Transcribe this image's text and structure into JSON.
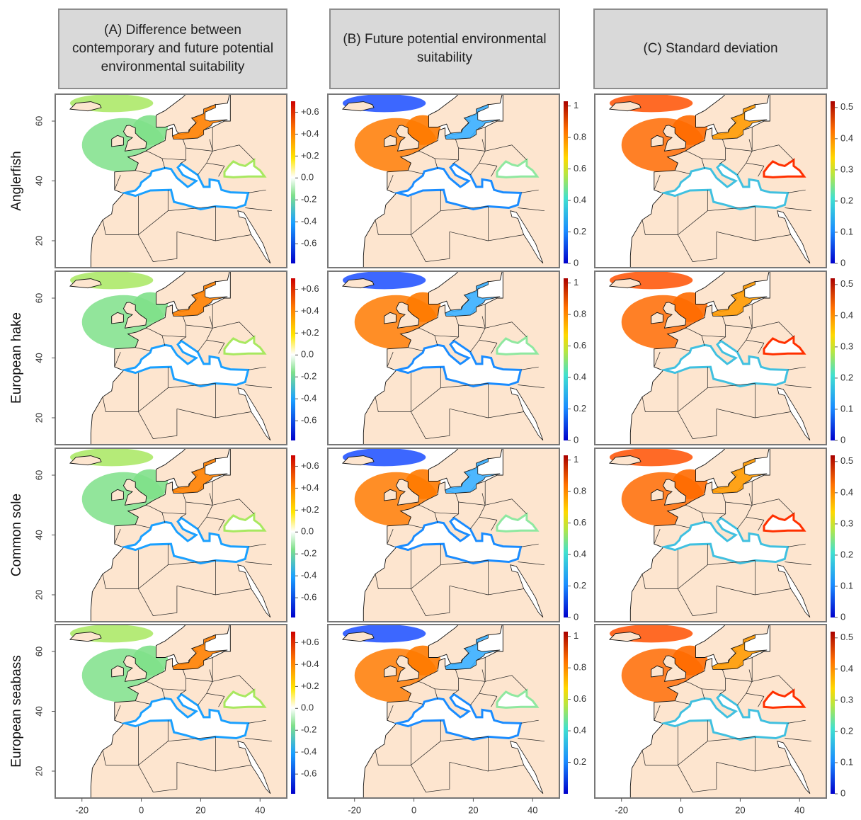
{
  "columns": [
    {
      "title": "(A) Difference between contemporary and future potential environmental suitability"
    },
    {
      "title": "(B) Future potential environmental suitability"
    },
    {
      "title": "(C) Standard deviation"
    }
  ],
  "rows": [
    {
      "label": "Anglerfish",
      "panels": [
        {
          "lim": [
            -0.78,
            0.7
          ],
          "ticks": [
            {
              "value": 0.6,
              "label": "+0.6"
            },
            {
              "value": 0.4,
              "label": "+0.4"
            },
            {
              "value": 0.2,
              "label": "+0.2"
            },
            {
              "value": 0,
              "label": "0.0"
            },
            -0.2,
            -0.4,
            -0.6
          ]
        },
        {
          "lim": [
            0,
            1.03
          ],
          "ticks": [
            1,
            0.8,
            0.6,
            0.4,
            0.2,
            0
          ]
        },
        {
          "lim": [
            0,
            0.52
          ],
          "ticks": [
            0.5,
            0.4,
            0.3,
            0.2,
            0.1,
            0
          ]
        }
      ]
    },
    {
      "label": "European hake",
      "panels": [
        {
          "lim": [
            -0.78,
            0.7
          ],
          "ticks": [
            {
              "value": 0.6,
              "label": "+0.6"
            },
            {
              "value": 0.4,
              "label": "+0.4"
            },
            {
              "value": 0.2,
              "label": "+0.2"
            },
            {
              "value": 0,
              "label": "0.0"
            },
            -0.2,
            -0.4,
            -0.6
          ]
        },
        {
          "lim": [
            0,
            1.03
          ],
          "ticks": [
            1,
            0.8,
            0.6,
            0.4,
            0.2,
            0
          ]
        },
        {
          "lim": [
            0,
            0.52
          ],
          "ticks": [
            0.5,
            0.4,
            0.3,
            0.2,
            0.1,
            0
          ]
        }
      ]
    },
    {
      "label": "Common sole",
      "panels": [
        {
          "lim": [
            -0.78,
            0.7
          ],
          "ticks": [
            {
              "value": 0.6,
              "label": "+0.6"
            },
            {
              "value": 0.4,
              "label": "+0.4"
            },
            {
              "value": 0.2,
              "label": "+0.2"
            },
            {
              "value": 0,
              "label": "0.0"
            },
            -0.2,
            -0.4,
            -0.6
          ]
        },
        {
          "lim": [
            0,
            1.03
          ],
          "ticks": [
            1,
            0.8,
            0.6,
            0.4,
            0.2,
            0
          ]
        },
        {
          "lim": [
            0,
            0.52
          ],
          "ticks": [
            0.5,
            0.4,
            0.3,
            0.2,
            0.1,
            0
          ]
        }
      ]
    },
    {
      "label": "European seabass",
      "panels": [
        {
          "lim": [
            -0.78,
            0.7
          ],
          "ticks": [
            {
              "value": 0.6,
              "label": "+0.6"
            },
            {
              "value": 0.4,
              "label": "+0.4"
            },
            {
              "value": 0.2,
              "label": "+0.2"
            },
            {
              "value": 0,
              "label": "0.0"
            },
            -0.2,
            -0.4,
            -0.6
          ]
        },
        {
          "lim": [
            0,
            1.03
          ],
          "ticks": [
            1,
            0.8,
            0.6,
            0.4,
            0.2
          ]
        },
        {
          "lim": [
            0,
            0.52
          ],
          "ticks": [
            0.5,
            0.4,
            0.3,
            0.2,
            0.1,
            0
          ]
        }
      ]
    }
  ],
  "lon_lim": [
    -29,
    49
  ],
  "lat_lim": [
    11,
    69
  ],
  "lon_ticks": [
    -20,
    0,
    20,
    40
  ],
  "lat_ticks": [
    20,
    40,
    60
  ]
}
